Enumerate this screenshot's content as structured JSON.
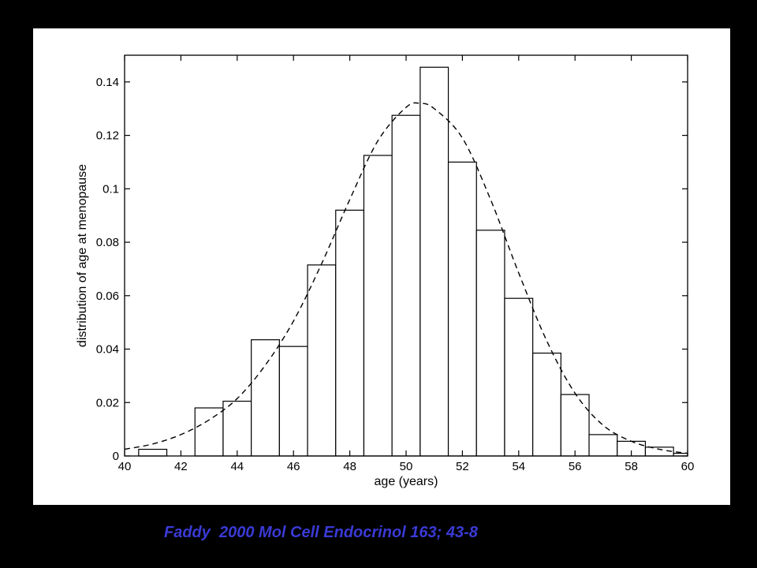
{
  "citation": "Faddy  2000 Mol Cell Endocrinol 163; 43-8",
  "colors": {
    "background": "#000000",
    "panel": "#ffffff",
    "citation": "#3a3ad6",
    "ink": "#000000"
  },
  "chart_data": {
    "type": "bar",
    "title": "",
    "xlabel": "age (years)",
    "ylabel": "distribution of age at menopause",
    "xlim": [
      40,
      60
    ],
    "ylim": [
      0,
      0.15
    ],
    "xticks": [
      40,
      42,
      44,
      46,
      48,
      50,
      52,
      54,
      56,
      58,
      60
    ],
    "yticks": [
      0,
      0.02,
      0.04,
      0.06,
      0.08,
      0.1,
      0.12,
      0.14
    ],
    "ytick_labels": [
      "0",
      "0.02",
      "0.04",
      "0.06",
      "0.08",
      "0.1",
      "0.12",
      "0.14"
    ],
    "grid": false,
    "bins": [
      {
        "x0": 40.5,
        "x1": 41.5,
        "value": 0.0025
      },
      {
        "x0": 41.5,
        "x1": 42.5,
        "value": 0.0
      },
      {
        "x0": 42.5,
        "x1": 43.5,
        "value": 0.018
      },
      {
        "x0": 43.5,
        "x1": 44.5,
        "value": 0.0205
      },
      {
        "x0": 44.5,
        "x1": 45.5,
        "value": 0.0435
      },
      {
        "x0": 45.5,
        "x1": 46.5,
        "value": 0.041
      },
      {
        "x0": 46.5,
        "x1": 47.5,
        "value": 0.0715
      },
      {
        "x0": 47.5,
        "x1": 48.5,
        "value": 0.092
      },
      {
        "x0": 48.5,
        "x1": 49.5,
        "value": 0.1125
      },
      {
        "x0": 49.5,
        "x1": 50.5,
        "value": 0.1275
      },
      {
        "x0": 50.5,
        "x1": 51.5,
        "value": 0.1455
      },
      {
        "x0": 51.5,
        "x1": 52.5,
        "value": 0.11
      },
      {
        "x0": 52.5,
        "x1": 53.5,
        "value": 0.0845
      },
      {
        "x0": 53.5,
        "x1": 54.5,
        "value": 0.059
      },
      {
        "x0": 54.5,
        "x1": 55.5,
        "value": 0.0385
      },
      {
        "x0": 55.5,
        "x1": 56.5,
        "value": 0.023
      },
      {
        "x0": 56.5,
        "x1": 57.5,
        "value": 0.008
      },
      {
        "x0": 57.5,
        "x1": 58.5,
        "value": 0.0055
      },
      {
        "x0": 58.5,
        "x1": 59.5,
        "value": 0.0033
      },
      {
        "x0": 59.5,
        "x1": 60.0,
        "value": 0.001
      }
    ],
    "fitted_curve": {
      "style": "dashed",
      "x": [
        40,
        41,
        42,
        43,
        44,
        45,
        46,
        47,
        48,
        49,
        50,
        50.5,
        51,
        52,
        53,
        54,
        55,
        56,
        57,
        58,
        59,
        60
      ],
      "y": [
        0.0025,
        0.0045,
        0.008,
        0.0135,
        0.0215,
        0.034,
        0.0505,
        0.072,
        0.096,
        0.118,
        0.1305,
        0.132,
        0.13,
        0.119,
        0.096,
        0.0685,
        0.043,
        0.0235,
        0.0115,
        0.0055,
        0.0025,
        0.001
      ]
    }
  }
}
